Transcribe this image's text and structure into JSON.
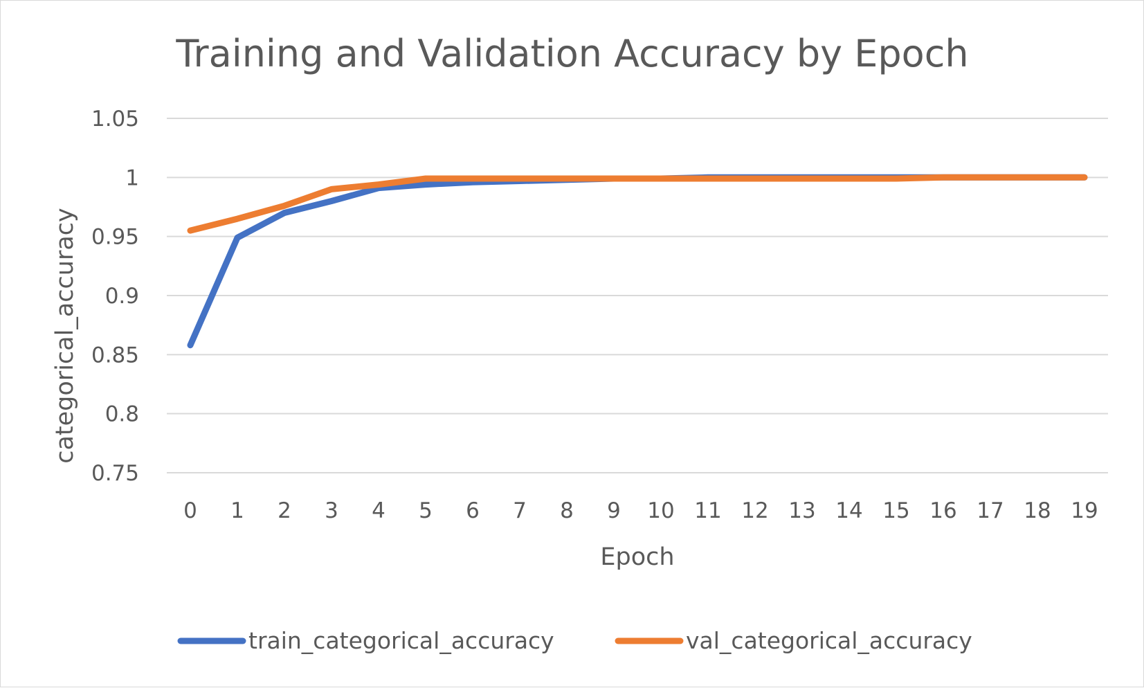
{
  "chart_data": {
    "type": "line",
    "title": "Training and Validation Accuracy by Epoch",
    "xlabel": "Epoch",
    "ylabel": "categorical_accuracy",
    "categories": [
      "0",
      "1",
      "2",
      "3",
      "4",
      "5",
      "6",
      "7",
      "8",
      "9",
      "10",
      "11",
      "12",
      "13",
      "14",
      "15",
      "16",
      "17",
      "18",
      "19"
    ],
    "y_ticks": [
      "1.05",
      "1",
      "0.95",
      "0.9",
      "0.85",
      "0.8",
      "0.75"
    ],
    "y_tick_values": [
      1.05,
      1.0,
      0.95,
      0.9,
      0.85,
      0.8,
      0.75
    ],
    "ylim": [
      0.75,
      1.05
    ],
    "grid": true,
    "legend_position": "bottom",
    "series": [
      {
        "name": "train_categorical_accuracy",
        "color": "#4472c4",
        "values": [
          0.858,
          0.949,
          0.97,
          0.98,
          0.991,
          0.994,
          0.996,
          0.997,
          0.998,
          0.999,
          0.999,
          1.0,
          1.0,
          1.0,
          1.0,
          1.0,
          1.0,
          1.0,
          1.0,
          1.0
        ]
      },
      {
        "name": "val_categorical_accuracy",
        "color": "#ed7d31",
        "values": [
          0.955,
          0.965,
          0.976,
          0.99,
          0.994,
          0.999,
          0.999,
          0.999,
          0.999,
          0.999,
          0.999,
          0.999,
          0.999,
          0.999,
          0.999,
          0.999,
          1.0,
          1.0,
          1.0,
          1.0
        ]
      }
    ]
  }
}
